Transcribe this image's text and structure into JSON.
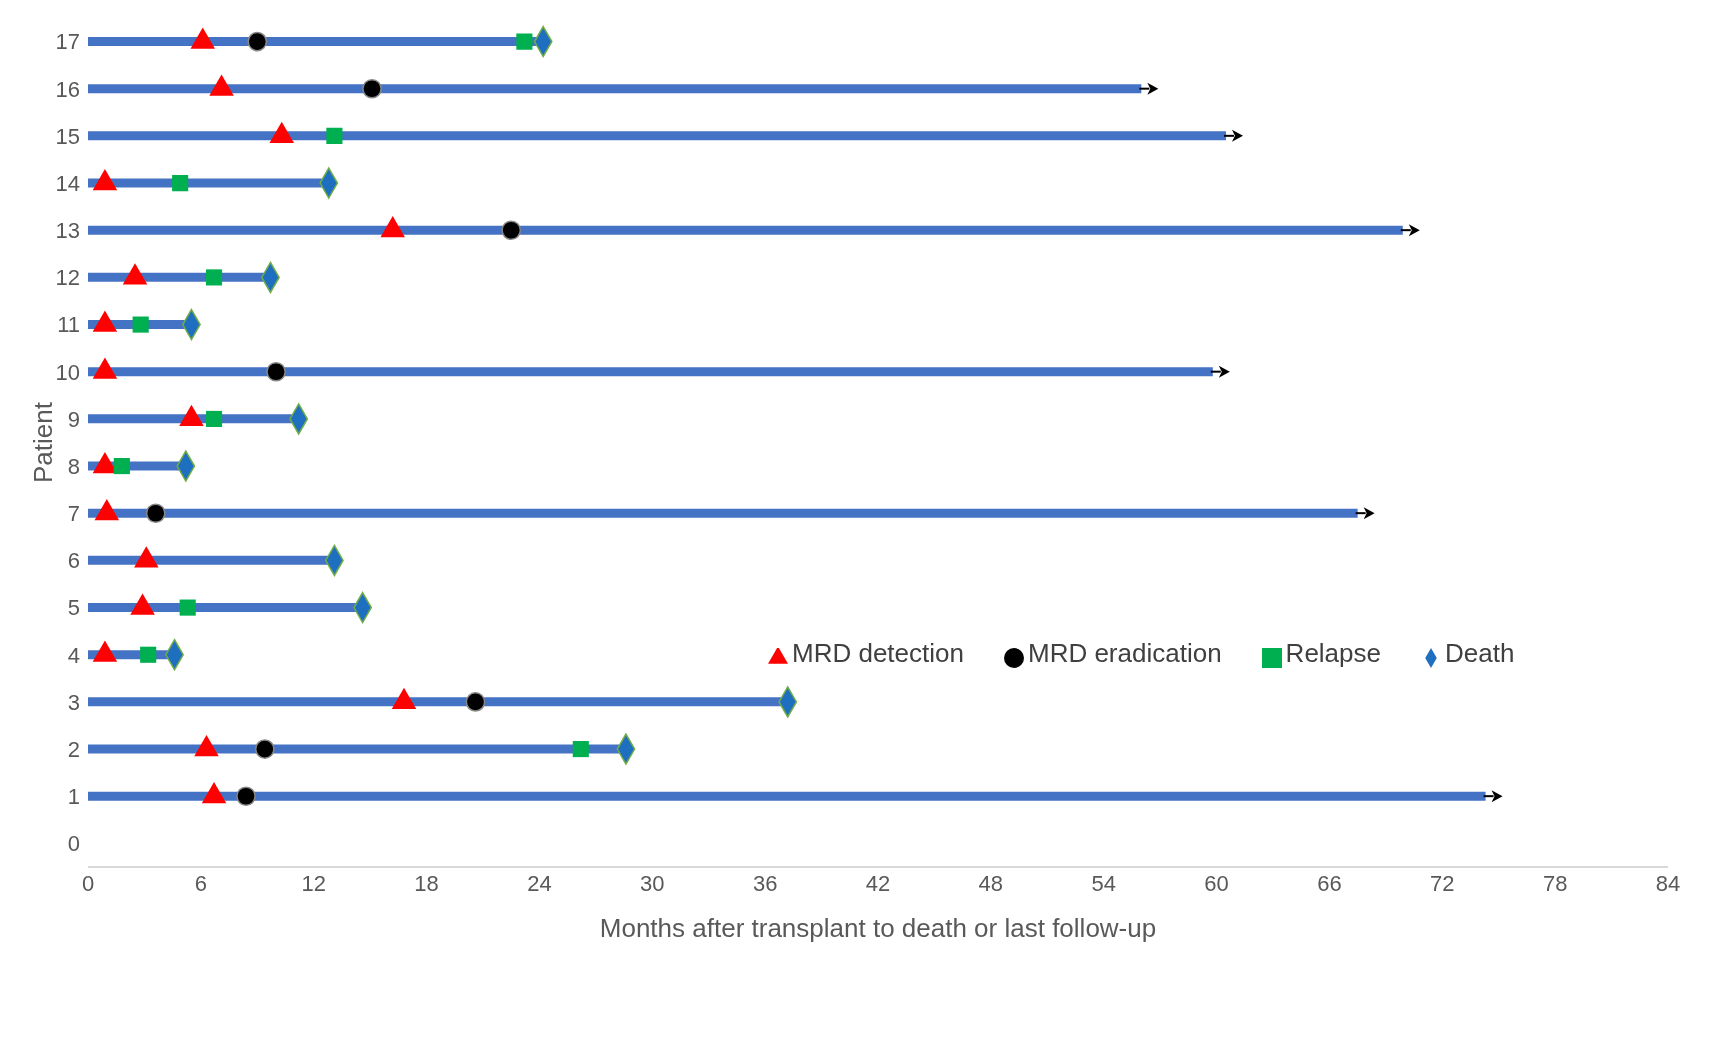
{
  "chart_data": {
    "type": "bar",
    "orientation": "horizontal",
    "xlabel": "Months after transplant to death or last follow-up",
    "ylabel": "Patient",
    "categories": [
      "17",
      "16",
      "15",
      "14",
      "13",
      "12",
      "11",
      "10",
      "9",
      "8",
      "7",
      "6",
      "5",
      "4",
      "3",
      "2",
      "1",
      "0"
    ],
    "series": [
      {
        "color": "#4472c4",
        "values": [
          24.2,
          56,
          60.5,
          12.8,
          69.9,
          9.7,
          5.5,
          59.8,
          11.2,
          5.2,
          67.5,
          13.1,
          14.6,
          4.6,
          37.2,
          28.6,
          74.3,
          null
        ]
      },
      {
        "type": "scatter",
        "name": "MRD detection",
        "color": "#ff0000",
        "marker": "triangle",
        "values": [
          6.1,
          7.1,
          10.3,
          0.9,
          16.2,
          2.5,
          0.9,
          0.9,
          5.5,
          0.9,
          1,
          3.1,
          2.9,
          0.9,
          16.8,
          6.3,
          6.7,
          null
        ]
      },
      {
        "type": "scatter",
        "name": "MRD eradication",
        "color": "#000000",
        "marker": "circle",
        "values": [
          9,
          15.1,
          null,
          null,
          22.5,
          null,
          null,
          10,
          null,
          null,
          3.6,
          null,
          null,
          null,
          20.6,
          9.4,
          8.4,
          null
        ]
      },
      {
        "type": "scatter",
        "name": "Relapse",
        "color": "#00b050",
        "marker": "square",
        "values": [
          23.2,
          null,
          13.1,
          4.9,
          null,
          6.7,
          2.8,
          null,
          6.7,
          1.8,
          null,
          null,
          5.3,
          3.2,
          null,
          26.2,
          null,
          null
        ]
      },
      {
        "type": "scatter",
        "name": "Death",
        "color": "#1f6fc0",
        "marker": "diamond",
        "values": [
          24.2,
          null,
          null,
          12.8,
          null,
          9.7,
          5.5,
          null,
          11.2,
          5.2,
          null,
          13.1,
          14.6,
          4.6,
          37.2,
          28.6,
          null,
          null
        ]
      }
    ],
    "xlim": [
      0,
      84
    ],
    "xticks": [
      0,
      6,
      12,
      18,
      24,
      30,
      36,
      42,
      48,
      54,
      60,
      66,
      72,
      78,
      84
    ],
    "grid": false,
    "legend": "right"
  }
}
